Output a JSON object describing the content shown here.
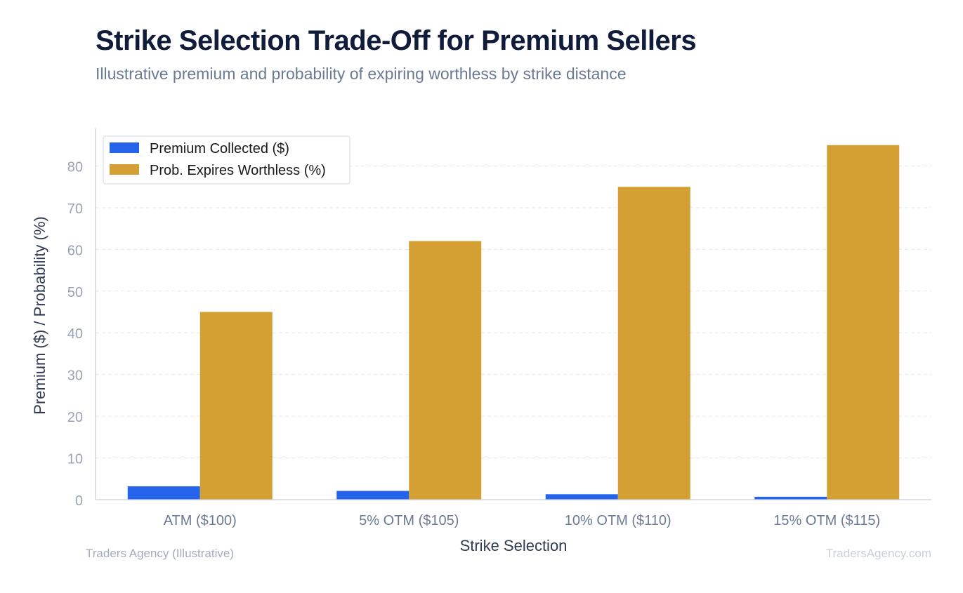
{
  "header": {
    "title": "Strike Selection Trade-Off for Premium Sellers",
    "subtitle": "Illustrative premium and probability of expiring worthless by strike distance"
  },
  "footer": {
    "source": "Traders Agency (Illustrative)",
    "site": "TradersAgency.com"
  },
  "colors": {
    "premium": "#2563eb",
    "probability": "#d4a033",
    "axis_text": "#99a3b5",
    "label_text": "#2f3b52"
  },
  "chart_data": {
    "type": "bar",
    "categories": [
      "ATM ($100)",
      "5% OTM ($105)",
      "10% OTM ($110)",
      "15% OTM ($115)"
    ],
    "series": [
      {
        "name": "Premium Collected ($)",
        "values": [
          3.2,
          2.1,
          1.3,
          0.7
        ]
      },
      {
        "name": "Prob. Expires Worthless (%)",
        "values": [
          45,
          62,
          75,
          85
        ]
      }
    ],
    "xlabel": "Strike Selection",
    "ylabel": "Premium ($) / Probability (%)",
    "ylim": [
      0,
      89
    ],
    "yticks": [
      0,
      10,
      20,
      30,
      40,
      50,
      60,
      70,
      80
    ],
    "grid": true,
    "legend": "top-left"
  }
}
